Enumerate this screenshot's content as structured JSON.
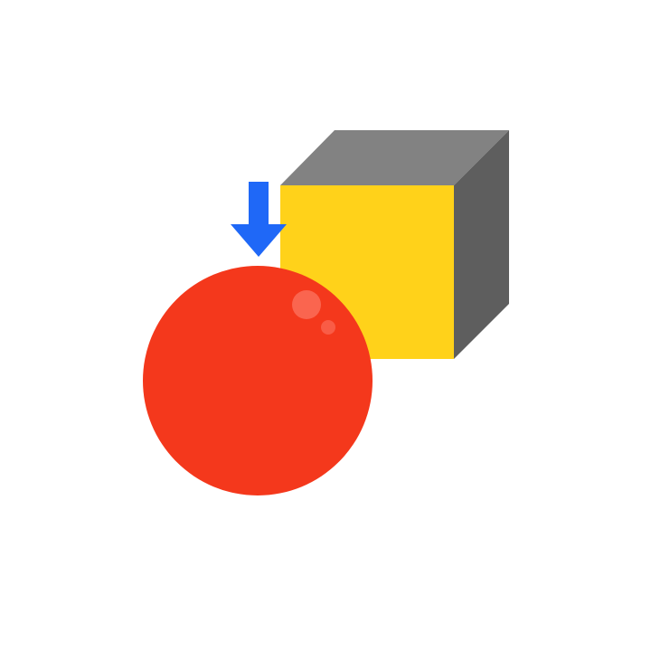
{
  "scene": {
    "background": "#ffffff",
    "cube": {
      "front_color": "#ffd21a",
      "top_color": "#828282",
      "side_color": "#5e5e5e"
    },
    "ball": {
      "color": "#f4381c",
      "highlight_color": "#ff8a7a"
    },
    "arrow": {
      "color": "#1f68f7",
      "direction": "down"
    }
  }
}
